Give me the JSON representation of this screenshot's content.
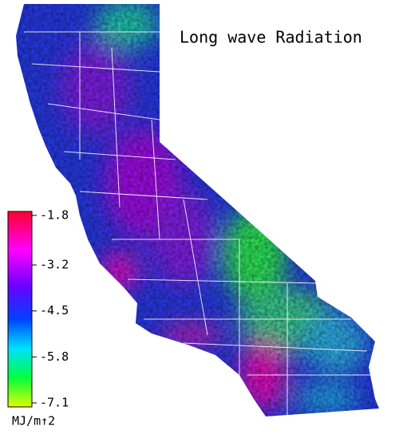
{
  "map": {
    "title": "Long wave Radiation",
    "colorbar": {
      "lim": [
        -7.1,
        -1.8
      ],
      "ticks": [
        -1.8,
        -3.2,
        -4.5,
        -5.8,
        -7.1
      ],
      "unit": "MJ/m↑2"
    }
  }
}
